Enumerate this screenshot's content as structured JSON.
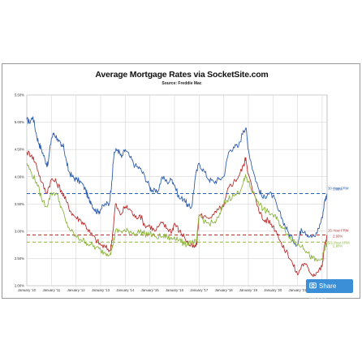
{
  "chart_data": {
    "type": "line",
    "title": "Average Mortgage Rates via SocketSite.com",
    "subtitle": "Source: Freddie Mac",
    "xlabel": "",
    "ylabel": "",
    "x_tick_labels": [
      "January '10",
      "January '11",
      "January '12",
      "January '13",
      "January '14",
      "January '15",
      "January '16",
      "January '17",
      "January '18",
      "January '19",
      "January '20",
      "January '21",
      "January '22"
    ],
    "y_tick_labels": [
      "2.00%",
      "2.50%",
      "3.00%",
      "3.50%",
      "4.00%",
      "4.50%",
      "5.00%",
      "5.50%"
    ],
    "xlim": [
      2010.0,
      2022.2
    ],
    "ylim": [
      2.0,
      5.5
    ],
    "grid": true,
    "series": [
      {
        "name": "30-Year FRM",
        "color": "#2f5fb0",
        "x": [
          2010.0,
          2010.1,
          2010.25,
          2010.4,
          2010.5,
          2010.6,
          2010.75,
          2010.85,
          2011.0,
          2011.1,
          2011.25,
          2011.4,
          2011.5,
          2011.6,
          2011.7,
          2011.85,
          2012.0,
          2012.2,
          2012.4,
          2012.5,
          2012.6,
          2012.75,
          2012.9,
          2013.0,
          2013.2,
          2013.35,
          2013.45,
          2013.55,
          2013.7,
          2013.85,
          2014.0,
          2014.2,
          2014.4,
          2014.6,
          2014.8,
          2015.0,
          2015.1,
          2015.3,
          2015.5,
          2015.7,
          2015.9,
          2016.0,
          2016.2,
          2016.4,
          2016.55,
          2016.7,
          2016.85,
          2017.0,
          2017.2,
          2017.4,
          2017.6,
          2017.8,
          2018.0,
          2018.2,
          2018.4,
          2018.6,
          2018.8,
          2018.9,
          2019.0,
          2019.2,
          2019.4,
          2019.6,
          2019.8,
          2020.0,
          2020.2,
          2020.4,
          2020.6,
          2020.8,
          2021.0,
          2021.15,
          2021.3,
          2021.5,
          2021.7,
          2021.85,
          2022.0,
          2022.1,
          2022.2
        ],
        "y": [
          5.05,
          5.0,
          5.1,
          4.75,
          4.6,
          4.5,
          4.3,
          4.2,
          4.7,
          4.8,
          4.7,
          4.55,
          4.55,
          4.3,
          4.1,
          4.0,
          3.95,
          3.9,
          3.75,
          3.6,
          3.55,
          3.4,
          3.35,
          3.4,
          3.5,
          3.5,
          3.9,
          4.45,
          4.5,
          4.35,
          4.5,
          4.35,
          4.2,
          4.15,
          4.0,
          3.8,
          3.75,
          3.7,
          4.0,
          3.9,
          3.95,
          3.85,
          3.6,
          3.6,
          3.45,
          3.45,
          4.0,
          4.25,
          4.1,
          3.95,
          3.9,
          3.95,
          4.0,
          4.45,
          4.55,
          4.55,
          4.85,
          4.9,
          4.5,
          4.1,
          3.8,
          3.6,
          3.7,
          3.65,
          3.4,
          3.2,
          3.0,
          2.85,
          2.75,
          3.05,
          3.0,
          2.9,
          2.9,
          3.05,
          3.25,
          3.55,
          3.69
        ]
      },
      {
        "name": "15-Year FRM",
        "color": "#bb2f2f",
        "x": [
          2010.0,
          2010.2,
          2010.4,
          2010.6,
          2010.8,
          2011.0,
          2011.2,
          2011.4,
          2011.6,
          2011.8,
          2012.0,
          2012.2,
          2012.4,
          2012.6,
          2012.8,
          2013.0,
          2013.2,
          2013.4,
          2013.5,
          2013.6,
          2013.8,
          2014.0,
          2014.2,
          2014.4,
          2014.6,
          2014.8,
          2015.0,
          2015.2,
          2015.5,
          2015.7,
          2015.9,
          2016.0,
          2016.2,
          2016.4,
          2016.6,
          2016.8,
          2016.9,
          2017.0,
          2017.3,
          2017.6,
          2017.8,
          2018.0,
          2018.2,
          2018.4,
          2018.6,
          2018.8,
          2018.9,
          2019.0,
          2019.2,
          2019.4,
          2019.6,
          2019.8,
          2020.0,
          2020.2,
          2020.4,
          2020.6,
          2020.8,
          2021.0,
          2021.2,
          2021.4,
          2021.6,
          2021.8,
          2022.0,
          2022.1,
          2022.2
        ],
        "y": [
          4.45,
          4.4,
          4.2,
          3.9,
          3.7,
          3.95,
          3.9,
          3.75,
          3.55,
          3.35,
          3.25,
          3.2,
          3.1,
          2.95,
          2.85,
          2.75,
          2.7,
          2.65,
          3.0,
          3.5,
          3.3,
          3.45,
          3.4,
          3.25,
          3.3,
          3.1,
          3.1,
          3.0,
          3.15,
          3.05,
          3.0,
          3.15,
          3.0,
          2.9,
          2.75,
          2.7,
          2.75,
          3.3,
          3.25,
          3.3,
          3.4,
          3.45,
          3.8,
          3.9,
          4.0,
          4.2,
          4.35,
          4.05,
          3.7,
          3.45,
          3.2,
          3.2,
          3.1,
          2.95,
          2.7,
          2.6,
          2.4,
          2.2,
          2.4,
          2.35,
          2.2,
          2.25,
          2.35,
          2.75,
          2.93
        ]
      },
      {
        "name": "5/1-Year ARM",
        "color": "#8cb53b",
        "x": [
          2010.0,
          2010.2,
          2010.4,
          2010.6,
          2010.8,
          2011.0,
          2011.2,
          2011.4,
          2011.6,
          2011.8,
          2012.0,
          2012.2,
          2012.4,
          2012.6,
          2012.8,
          2013.0,
          2013.2,
          2013.4,
          2013.5,
          2013.6,
          2013.8,
          2014.0,
          2014.2,
          2014.4,
          2014.6,
          2014.8,
          2015.0,
          2015.2,
          2015.5,
          2015.7,
          2015.9,
          2016.0,
          2016.2,
          2016.4,
          2016.6,
          2016.8,
          2016.9,
          2017.0,
          2017.3,
          2017.6,
          2017.8,
          2018.0,
          2018.2,
          2018.4,
          2018.6,
          2018.8,
          2018.9,
          2019.0,
          2019.2,
          2019.4,
          2019.6,
          2019.8,
          2020.0,
          2020.2,
          2020.4,
          2020.6,
          2020.8,
          2021.0,
          2021.2,
          2021.4,
          2021.6,
          2021.8,
          2022.0,
          2022.1,
          2022.2
        ],
        "y": [
          4.25,
          4.05,
          3.9,
          3.6,
          3.45,
          3.7,
          3.7,
          3.45,
          3.15,
          3.0,
          2.9,
          2.85,
          2.8,
          2.75,
          2.7,
          2.65,
          2.6,
          2.6,
          2.75,
          3.0,
          3.0,
          3.0,
          3.0,
          2.95,
          3.0,
          2.95,
          2.95,
          2.9,
          2.9,
          2.9,
          2.85,
          2.9,
          2.85,
          2.75,
          2.8,
          2.8,
          2.8,
          3.3,
          3.15,
          3.15,
          3.25,
          3.5,
          3.6,
          3.65,
          3.7,
          3.9,
          4.0,
          3.9,
          3.7,
          3.55,
          3.4,
          3.35,
          3.3,
          3.2,
          3.05,
          2.95,
          2.85,
          2.75,
          2.75,
          2.6,
          2.5,
          2.45,
          2.5,
          2.65,
          2.8
        ]
      }
    ],
    "reference_lines": [
      {
        "label": "30-Year FRM",
        "value_label": "3.69%",
        "y": 3.69,
        "color": "#2f5fb0"
      },
      {
        "label": "15-Year FRM",
        "value_label": "2.93%",
        "y": 2.93,
        "color": "#bb2f2f"
      },
      {
        "label": "5/1-Year ARM",
        "value_label": "2.80%",
        "y": 2.8,
        "color": "#8cb53b"
      }
    ]
  },
  "share": {
    "label": "Share Image",
    "icon": "share-icon",
    "color": "#3b8fd6"
  }
}
